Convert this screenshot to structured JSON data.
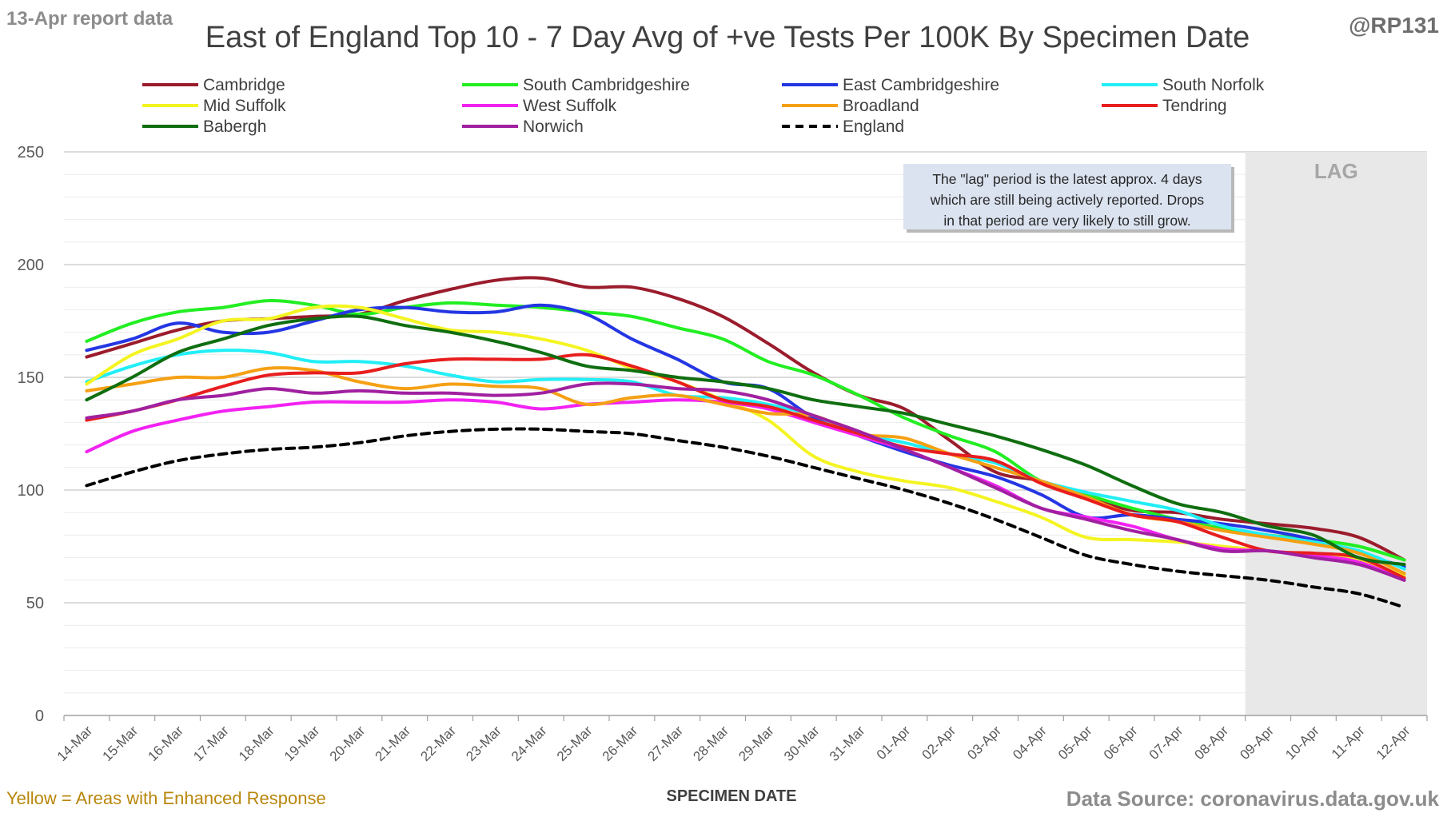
{
  "header": {
    "report_label": "13-Apr report data",
    "title": "East of England Top 10 - 7 Day Avg of +ve Tests Per 100K By Specimen Date",
    "handle": "@RP131"
  },
  "footer": {
    "note": "Yellow = Areas with Enhanced Response",
    "source": "Data Source: coronavirus.data.gov.uk"
  },
  "colors": {
    "background": "#ffffff",
    "gridline": "#d9d9d9",
    "lag_shade": "#e8e8e8",
    "note_text": "#b8860b"
  },
  "chart_data": {
    "type": "line",
    "title": "East of England Top 10 - 7 Day Avg of +ve Tests Per 100K By Specimen Date",
    "xlabel": "SPECIMEN DATE",
    "ylabel": "",
    "ylim": [
      0,
      250
    ],
    "yticks": [
      0,
      50,
      100,
      150,
      200,
      250
    ],
    "grid": true,
    "legend_position": "top",
    "categories": [
      "14-Mar",
      "15-Mar",
      "16-Mar",
      "17-Mar",
      "18-Mar",
      "19-Mar",
      "20-Mar",
      "21-Mar",
      "22-Mar",
      "23-Mar",
      "24-Mar",
      "25-Mar",
      "26-Mar",
      "27-Mar",
      "28-Mar",
      "29-Mar",
      "30-Mar",
      "31-Mar",
      "01-Apr",
      "02-Apr",
      "03-Apr",
      "04-Apr",
      "05-Apr",
      "06-Apr",
      "07-Apr",
      "08-Apr",
      "09-Apr",
      "10-Apr",
      "11-Apr",
      "12-Apr"
    ],
    "lag": {
      "label": "LAG",
      "start": "09-Apr",
      "end": "12-Apr",
      "note": "The \"lag\" period is the latest approx. 4 days which are still being actively reported.  Drops in that period are very likely to still grow."
    },
    "series": [
      {
        "name": "Cambridge",
        "color": "#9b1c2c",
        "dashed": false,
        "values": [
          159,
          165,
          171,
          175,
          176,
          177,
          178,
          184,
          189,
          193,
          194,
          190,
          190,
          185,
          177,
          165,
          152,
          142,
          136,
          122,
          108,
          104,
          97,
          91,
          90,
          87,
          85,
          83,
          79,
          69
        ]
      },
      {
        "name": "South Cambridgeshire",
        "color": "#22ee22",
        "dashed": false,
        "values": [
          166,
          174,
          179,
          181,
          184,
          182,
          178,
          181,
          183,
          182,
          181,
          179,
          177,
          172,
          167,
          157,
          151,
          142,
          132,
          124,
          117,
          104,
          98,
          92,
          87,
          83,
          80,
          78,
          75,
          69
        ]
      },
      {
        "name": "East Cambridgeshire",
        "color": "#2436e3",
        "dashed": false,
        "values": [
          162,
          167,
          174,
          170,
          170,
          175,
          180,
          181,
          179,
          179,
          182,
          178,
          167,
          158,
          148,
          145,
          132,
          124,
          117,
          111,
          106,
          98,
          88,
          89,
          87,
          85,
          82,
          78,
          72,
          66
        ]
      },
      {
        "name": "South Norfolk",
        "color": "#22eef6",
        "dashed": false,
        "values": [
          148,
          155,
          160,
          162,
          161,
          157,
          157,
          155,
          151,
          148,
          149,
          149,
          148,
          142,
          141,
          138,
          133,
          125,
          121,
          116,
          112,
          104,
          99,
          95,
          91,
          84,
          80,
          77,
          73,
          65
        ]
      },
      {
        "name": "Mid Suffolk",
        "color": "#f4f422",
        "dashed": false,
        "values": [
          147,
          160,
          167,
          175,
          176,
          181,
          181,
          176,
          171,
          170,
          167,
          162,
          154,
          148,
          140,
          131,
          115,
          108,
          104,
          101,
          95,
          88,
          79,
          78,
          77,
          75,
          73,
          71,
          69,
          62
        ]
      },
      {
        "name": "West Suffolk",
        "color": "#f222f2",
        "dashed": false,
        "values": [
          117,
          126,
          131,
          135,
          137,
          139,
          139,
          139,
          140,
          139,
          136,
          138,
          139,
          140,
          139,
          136,
          130,
          124,
          118,
          110,
          102,
          92,
          88,
          84,
          78,
          74,
          73,
          71,
          68,
          60
        ]
      },
      {
        "name": "Broadland",
        "color": "#f5a014",
        "dashed": false,
        "values": [
          144,
          147,
          150,
          150,
          154,
          153,
          148,
          145,
          147,
          146,
          145,
          138,
          141,
          142,
          138,
          134,
          133,
          125,
          123,
          116,
          110,
          104,
          97,
          89,
          86,
          82,
          79,
          76,
          72,
          63
        ]
      },
      {
        "name": "Tendring",
        "color": "#e81e1e",
        "dashed": false,
        "values": [
          131,
          135,
          140,
          146,
          151,
          152,
          152,
          156,
          158,
          158,
          158,
          160,
          155,
          148,
          140,
          137,
          131,
          125,
          119,
          116,
          113,
          103,
          96,
          89,
          86,
          79,
          73,
          72,
          70,
          61
        ]
      },
      {
        "name": "Babergh",
        "color": "#0f6e0f",
        "dashed": false,
        "values": [
          140,
          150,
          161,
          167,
          173,
          176,
          177,
          173,
          170,
          166,
          161,
          155,
          153,
          150,
          148,
          145,
          140,
          137,
          134,
          129,
          124,
          118,
          111,
          102,
          94,
          90,
          84,
          80,
          70,
          67
        ]
      },
      {
        "name": "Norwich",
        "color": "#a020a0",
        "dashed": false,
        "values": [
          132,
          135,
          140,
          142,
          145,
          143,
          144,
          143,
          143,
          142,
          143,
          147,
          147,
          145,
          144,
          140,
          133,
          126,
          118,
          110,
          101,
          92,
          87,
          82,
          78,
          73,
          73,
          70,
          67,
          60
        ]
      },
      {
        "name": "England",
        "color": "#000000",
        "dashed": true,
        "values": [
          102,
          108,
          113,
          116,
          118,
          119,
          121,
          124,
          126,
          127,
          127,
          126,
          125,
          122,
          119,
          115,
          110,
          105,
          100,
          94,
          87,
          79,
          71,
          67,
          64,
          62,
          60,
          57,
          54,
          48
        ]
      }
    ]
  }
}
